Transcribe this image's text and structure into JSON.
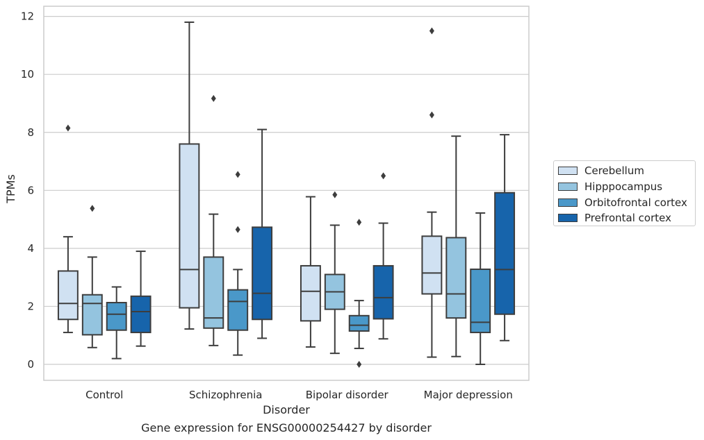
{
  "chart_data": {
    "type": "box",
    "title": "Gene expression for ENSG00000254427 by disorder",
    "xlabel": "Disorder",
    "ylabel": "TPMs",
    "ylim": [
      -0.55,
      12.35
    ],
    "yticks": [
      0,
      2,
      4,
      6,
      8,
      10,
      12
    ],
    "grid": "horizontal",
    "legend_position": "right",
    "categories": [
      "Control",
      "Schizophrenia",
      "Bipolar disorder",
      "Major depression"
    ],
    "series": [
      {
        "name": "Cerebellum",
        "color": "#d0e1f2",
        "boxes": [
          {
            "whislo": 1.1,
            "q1": 1.55,
            "med": 2.1,
            "q3": 3.22,
            "whishi": 4.4,
            "fliers": [
              8.15
            ]
          },
          {
            "whislo": 1.22,
            "q1": 1.95,
            "med": 3.27,
            "q3": 7.6,
            "whishi": 11.8,
            "fliers": []
          },
          {
            "whislo": 0.6,
            "q1": 1.5,
            "med": 2.52,
            "q3": 3.4,
            "whishi": 5.78,
            "fliers": []
          },
          {
            "whislo": 0.25,
            "q1": 2.43,
            "med": 3.15,
            "q3": 4.42,
            "whishi": 5.25,
            "fliers": [
              8.6,
              11.5
            ]
          }
        ]
      },
      {
        "name": "Hipppocampus",
        "color": "#94c4df",
        "boxes": [
          {
            "whislo": 0.58,
            "q1": 1.02,
            "med": 2.1,
            "q3": 2.4,
            "whishi": 3.7,
            "fliers": [
              5.38
            ]
          },
          {
            "whislo": 0.65,
            "q1": 1.25,
            "med": 1.6,
            "q3": 3.7,
            "whishi": 5.18,
            "fliers": [
              9.17
            ]
          },
          {
            "whislo": 0.38,
            "q1": 1.9,
            "med": 2.5,
            "q3": 3.1,
            "whishi": 4.8,
            "fliers": [
              5.85
            ]
          },
          {
            "whislo": 0.27,
            "q1": 1.6,
            "med": 2.43,
            "q3": 4.37,
            "whishi": 7.87,
            "fliers": []
          }
        ]
      },
      {
        "name": "Orbitofrontal cortex",
        "color": "#4a98c9",
        "boxes": [
          {
            "whislo": 0.2,
            "q1": 1.18,
            "med": 1.73,
            "q3": 2.13,
            "whishi": 2.67,
            "fliers": []
          },
          {
            "whislo": 0.32,
            "q1": 1.18,
            "med": 2.17,
            "q3": 2.57,
            "whishi": 3.27,
            "fliers": [
              4.65,
              6.55
            ]
          },
          {
            "whislo": 0.55,
            "q1": 1.15,
            "med": 1.35,
            "q3": 1.68,
            "whishi": 2.2,
            "fliers": [
              0.0,
              4.9
            ]
          },
          {
            "whislo": 0.0,
            "q1": 1.1,
            "med": 1.45,
            "q3": 3.28,
            "whishi": 5.22,
            "fliers": []
          }
        ]
      },
      {
        "name": "Prefrontal cortex",
        "color": "#1764ab",
        "boxes": [
          {
            "whislo": 0.63,
            "q1": 1.1,
            "med": 1.82,
            "q3": 2.35,
            "whishi": 3.9,
            "fliers": []
          },
          {
            "whislo": 0.9,
            "q1": 1.55,
            "med": 2.45,
            "q3": 4.73,
            "whishi": 8.1,
            "fliers": []
          },
          {
            "whislo": 0.88,
            "q1": 1.57,
            "med": 2.3,
            "q3": 3.4,
            "whishi": 4.87,
            "fliers": [
              6.5
            ]
          },
          {
            "whislo": 0.82,
            "q1": 1.73,
            "med": 3.27,
            "q3": 5.92,
            "whishi": 7.92,
            "fliers": []
          }
        ]
      }
    ]
  }
}
